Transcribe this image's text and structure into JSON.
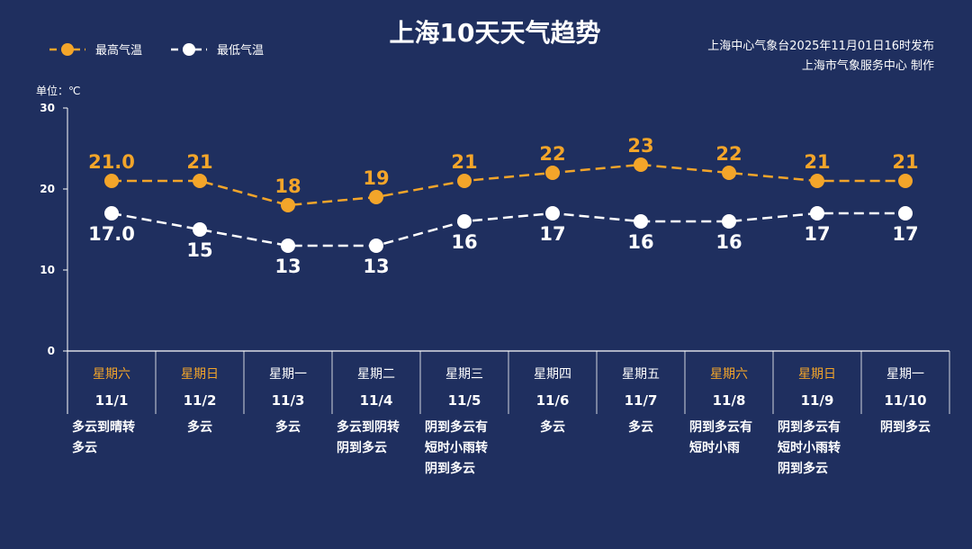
{
  "title": "上海10天天气趋势",
  "source_line1": "上海中心气象台2025年11月01日16时发布",
  "source_line2": "上海市气象服务中心  制作",
  "unit_label": "单位：℃",
  "legend": {
    "high": "最高气温",
    "low": "最低气温"
  },
  "colors": {
    "background": "#1f2f5f",
    "high": "#f3a52a",
    "low": "#ffffff",
    "weekend": "#f3a52a",
    "weekday": "#ffffff"
  },
  "chart_data": {
    "type": "line",
    "categories": [
      "11/1",
      "11/2",
      "11/3",
      "11/4",
      "11/5",
      "11/6",
      "11/7",
      "11/8",
      "11/9",
      "11/10"
    ],
    "ylim": [
      0,
      30
    ],
    "yticks": [
      0,
      10,
      20,
      30
    ],
    "grid": false,
    "legend_position": "top-left",
    "series": [
      {
        "name": "最高气温",
        "key": "high",
        "values": [
          21.0,
          21,
          18,
          19,
          21,
          22,
          23,
          22,
          21,
          21
        ],
        "labels": [
          "21.0",
          "21",
          "18",
          "19",
          "21",
          "22",
          "23",
          "22",
          "21",
          "21"
        ]
      },
      {
        "name": "最低气温",
        "key": "low",
        "values": [
          17.0,
          15,
          13,
          13,
          16,
          17,
          16,
          16,
          17,
          17
        ],
        "labels": [
          "17.0",
          "15",
          "13",
          "13",
          "16",
          "17",
          "16",
          "16",
          "17",
          "17"
        ]
      }
    ]
  },
  "days": [
    {
      "dow": "星期六",
      "date": "11/1",
      "weekend": true,
      "weather": [
        "多云到晴转",
        "多云"
      ]
    },
    {
      "dow": "星期日",
      "date": "11/2",
      "weekend": true,
      "weather": [
        "多云"
      ]
    },
    {
      "dow": "星期一",
      "date": "11/3",
      "weekend": false,
      "weather": [
        "多云"
      ]
    },
    {
      "dow": "星期二",
      "date": "11/4",
      "weekend": false,
      "weather": [
        "多云到阴转",
        "阴到多云"
      ]
    },
    {
      "dow": "星期三",
      "date": "11/5",
      "weekend": false,
      "weather": [
        "阴到多云有",
        "短时小雨转",
        "阴到多云"
      ]
    },
    {
      "dow": "星期四",
      "date": "11/6",
      "weekend": false,
      "weather": [
        "多云"
      ]
    },
    {
      "dow": "星期五",
      "date": "11/7",
      "weekend": false,
      "weather": [
        "多云"
      ]
    },
    {
      "dow": "星期六",
      "date": "11/8",
      "weekend": true,
      "weather": [
        "阴到多云有",
        "短时小雨"
      ]
    },
    {
      "dow": "星期日",
      "date": "11/9",
      "weekend": true,
      "weather": [
        "阴到多云有",
        "短时小雨转",
        "阴到多云"
      ]
    },
    {
      "dow": "星期一",
      "date": "11/10",
      "weekend": false,
      "weather": [
        "阴到多云"
      ]
    }
  ]
}
